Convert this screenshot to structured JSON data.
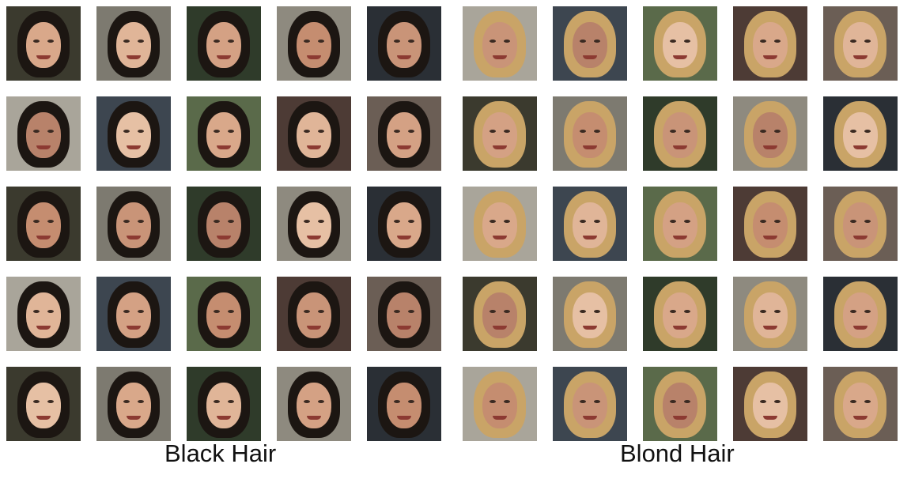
{
  "panels": [
    {
      "label": "Black Hair",
      "hair_color": "#1c1612",
      "rows": 5,
      "cols": 5
    },
    {
      "label": "Blond Hair",
      "hair_color": "#c9a467",
      "rows": 5,
      "cols": 5
    }
  ],
  "colors": {
    "background": "#ffffff",
    "caption_text": "#111111"
  }
}
